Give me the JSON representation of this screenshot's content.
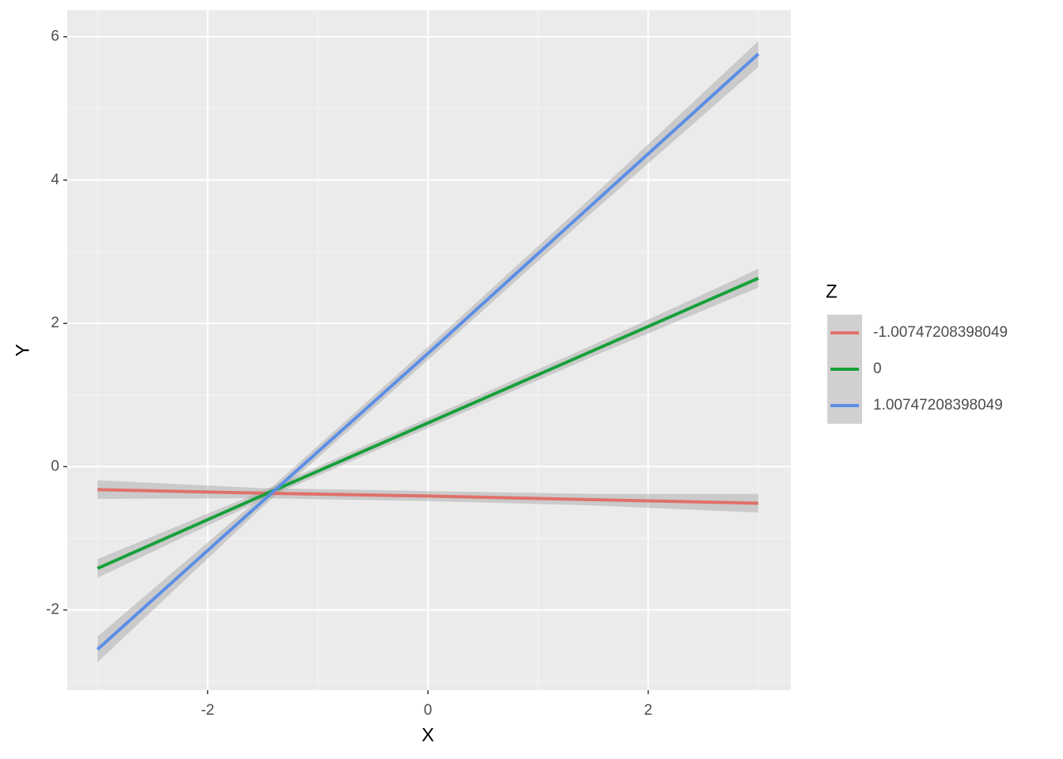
{
  "chart_data": {
    "type": "line",
    "x_label": "X",
    "y_label": "Y",
    "legend_title": "Z",
    "x": [
      -3,
      -1.5,
      0,
      1.5,
      3
    ],
    "series": [
      {
        "name": "-1.00747208398049",
        "color": "#e0706a",
        "values": [
          -0.32,
          -0.37,
          -0.41,
          -0.46,
          -0.51
        ],
        "lower": [
          -0.45,
          -0.44,
          -0.48,
          -0.54,
          -0.64
        ],
        "upper": [
          -0.19,
          -0.3,
          -0.34,
          -0.38,
          -0.38
        ]
      },
      {
        "name": "0",
        "color": "#17a03a",
        "values": [
          -1.42,
          -0.4,
          0.61,
          1.62,
          2.63
        ],
        "lower": [
          -1.55,
          -0.46,
          0.54,
          1.54,
          2.5
        ],
        "upper": [
          -1.29,
          -0.34,
          0.68,
          1.7,
          2.76
        ]
      },
      {
        "name": "1.00747208398049",
        "color": "#5b8ee6",
        "values": [
          -2.55,
          -0.48,
          1.58,
          3.67,
          5.76
        ],
        "lower": [
          -2.73,
          -0.56,
          1.49,
          3.56,
          5.58
        ],
        "upper": [
          -2.37,
          -0.4,
          1.67,
          3.78,
          5.94
        ]
      }
    ],
    "xlim": [
      -3.275,
      3.296
    ],
    "ylim": [
      -3.12,
      6.37
    ],
    "xticks": [
      -2,
      0,
      2
    ],
    "yticks": [
      -2,
      0,
      2,
      4,
      6
    ],
    "grid": true,
    "legend": "right"
  }
}
